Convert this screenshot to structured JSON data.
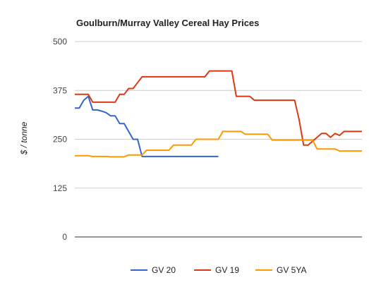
{
  "chart_data": {
    "type": "line",
    "title": "Goulburn/Murray Valley Cereal Hay Prices",
    "xlabel": "",
    "ylabel": "$ / tonne",
    "ylim": [
      0,
      500
    ],
    "yticks": [
      0,
      125,
      250,
      375,
      500
    ],
    "ytick_labels": [
      "0",
      "125",
      "250",
      "375",
      "500"
    ],
    "grid": true,
    "legend_position": "bottom",
    "series": [
      {
        "name": "GV 20",
        "color": "#3366cc",
        "x": [
          0,
          1,
          2,
          3,
          4,
          5,
          6,
          7,
          8,
          9,
          10,
          11,
          12,
          13,
          14,
          15,
          16,
          17,
          18,
          19,
          20,
          21,
          22,
          23,
          24,
          25,
          26,
          27,
          28,
          29,
          30,
          31,
          32
        ],
        "values": [
          330,
          330,
          350,
          360,
          325,
          325,
          322,
          318,
          310,
          310,
          290,
          290,
          270,
          250,
          250,
          206,
          206,
          206,
          206,
          206,
          206,
          206,
          206,
          206,
          206,
          206,
          206,
          206,
          206,
          206,
          206,
          206,
          206
        ]
      },
      {
        "name": "GV 19",
        "color": "#dc3912",
        "x": [
          0,
          1,
          2,
          3,
          4,
          5,
          6,
          7,
          8,
          9,
          10,
          11,
          12,
          13,
          14,
          15,
          16,
          17,
          18,
          19,
          20,
          21,
          22,
          23,
          24,
          25,
          26,
          27,
          28,
          29,
          30,
          31,
          32,
          33,
          34,
          35,
          36,
          37,
          38,
          39,
          40,
          41,
          42,
          43,
          44,
          45,
          46,
          47,
          48,
          49,
          50,
          51,
          52,
          53,
          54,
          55,
          56,
          57,
          58,
          59,
          60,
          61,
          62,
          63,
          64
        ],
        "values": [
          365,
          365,
          365,
          365,
          345,
          345,
          345,
          345,
          345,
          345,
          365,
          365,
          380,
          380,
          395,
          410,
          410,
          410,
          410,
          410,
          410,
          410,
          410,
          410,
          410,
          410,
          410,
          410,
          410,
          410,
          425,
          425,
          425,
          425,
          425,
          425,
          360,
          360,
          360,
          360,
          350,
          350,
          350,
          350,
          350,
          350,
          350,
          350,
          350,
          350,
          300,
          235,
          235,
          245,
          255,
          265,
          265,
          255,
          265,
          260,
          270,
          270,
          270,
          270,
          270
        ]
      },
      {
        "name": "GV 5YA",
        "color": "#ff9900",
        "x": [
          0,
          1,
          2,
          3,
          4,
          5,
          6,
          7,
          8,
          9,
          10,
          11,
          12,
          13,
          14,
          15,
          16,
          17,
          18,
          19,
          20,
          21,
          22,
          23,
          24,
          25,
          26,
          27,
          28,
          29,
          30,
          31,
          32,
          33,
          34,
          35,
          36,
          37,
          38,
          39,
          40,
          41,
          42,
          43,
          44,
          45,
          46,
          47,
          48,
          49,
          50,
          51,
          52,
          53,
          54,
          55,
          56,
          57,
          58,
          59,
          60,
          61,
          62,
          63,
          64
        ],
        "values": [
          208,
          208,
          208,
          208,
          206,
          206,
          206,
          206,
          205,
          205,
          205,
          205,
          210,
          210,
          210,
          210,
          222,
          222,
          222,
          222,
          222,
          222,
          235,
          235,
          235,
          235,
          235,
          250,
          250,
          250,
          250,
          250,
          250,
          270,
          270,
          270,
          270,
          270,
          263,
          263,
          263,
          263,
          263,
          263,
          248,
          248,
          248,
          248,
          248,
          248,
          248,
          248,
          248,
          248,
          225,
          225,
          225,
          225,
          225,
          220,
          220,
          220,
          220,
          220,
          220
        ]
      }
    ]
  }
}
